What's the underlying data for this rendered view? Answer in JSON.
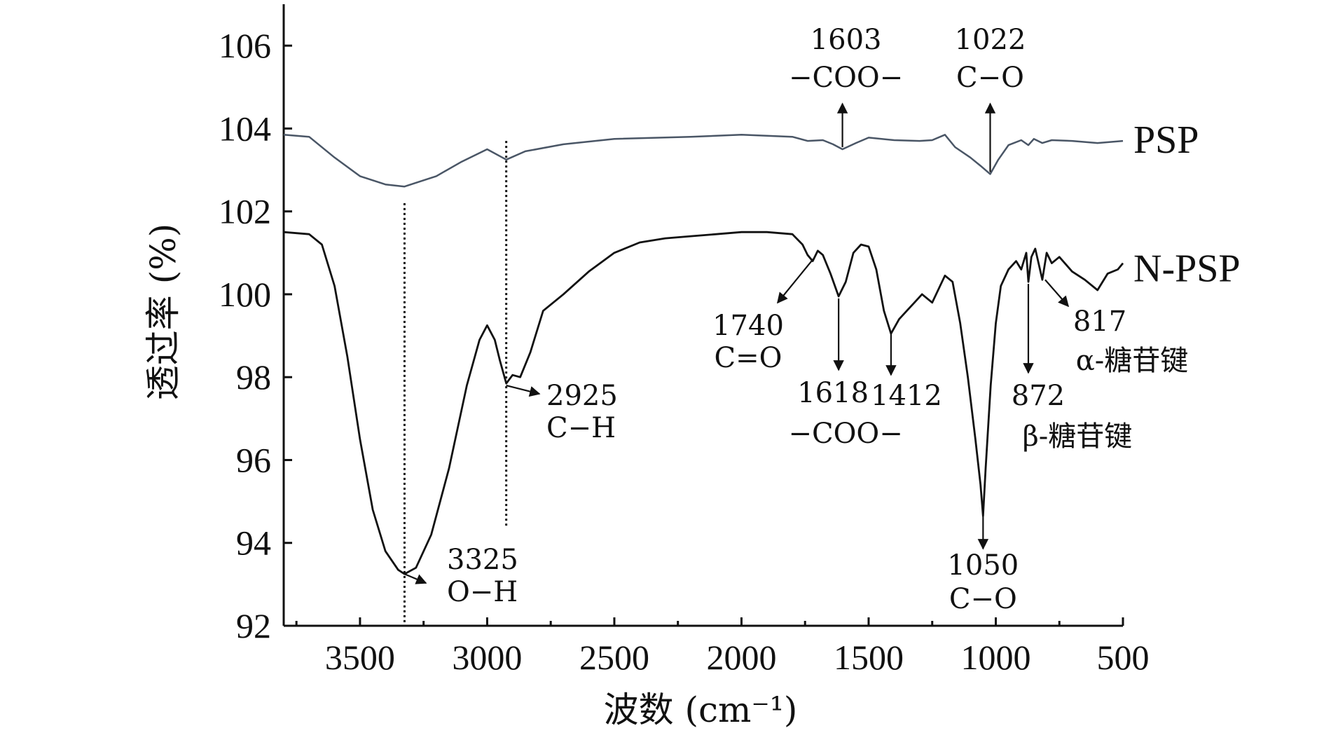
{
  "chart_data": {
    "type": "line",
    "xlabel": "波数 (cm⁻¹)",
    "ylabel": "透过率 (%)",
    "xlim": [
      3800,
      500
    ],
    "ylim": [
      92,
      107
    ],
    "x_ticks": [
      3500,
      3000,
      2500,
      2000,
      1500,
      1000,
      500
    ],
    "y_ticks": [
      92,
      94,
      96,
      98,
      100,
      102,
      104,
      106
    ],
    "grid": false,
    "series": [
      {
        "name": "PSP",
        "color": "#4a5666",
        "points": [
          [
            3800,
            103.85
          ],
          [
            3700,
            103.8
          ],
          [
            3600,
            103.3
          ],
          [
            3500,
            102.85
          ],
          [
            3400,
            102.65
          ],
          [
            3325,
            102.6
          ],
          [
            3200,
            102.85
          ],
          [
            3100,
            103.2
          ],
          [
            3000,
            103.5
          ],
          [
            2925,
            103.25
          ],
          [
            2850,
            103.45
          ],
          [
            2700,
            103.62
          ],
          [
            2500,
            103.75
          ],
          [
            2200,
            103.8
          ],
          [
            2000,
            103.85
          ],
          [
            1800,
            103.8
          ],
          [
            1740,
            103.7
          ],
          [
            1680,
            103.72
          ],
          [
            1640,
            103.62
          ],
          [
            1603,
            103.5
          ],
          [
            1550,
            103.65
          ],
          [
            1500,
            103.78
          ],
          [
            1400,
            103.72
          ],
          [
            1300,
            103.7
          ],
          [
            1250,
            103.72
          ],
          [
            1200,
            103.85
          ],
          [
            1160,
            103.55
          ],
          [
            1100,
            103.3
          ],
          [
            1060,
            103.1
          ],
          [
            1022,
            102.9
          ],
          [
            990,
            103.25
          ],
          [
            950,
            103.6
          ],
          [
            900,
            103.72
          ],
          [
            872,
            103.6
          ],
          [
            850,
            103.75
          ],
          [
            817,
            103.65
          ],
          [
            780,
            103.72
          ],
          [
            700,
            103.7
          ],
          [
            600,
            103.65
          ],
          [
            500,
            103.7
          ]
        ]
      },
      {
        "name": "N-PSP",
        "color": "#111111",
        "points": [
          [
            3800,
            101.5
          ],
          [
            3700,
            101.45
          ],
          [
            3650,
            101.2
          ],
          [
            3600,
            100.2
          ],
          [
            3550,
            98.5
          ],
          [
            3500,
            96.5
          ],
          [
            3450,
            94.8
          ],
          [
            3400,
            93.8
          ],
          [
            3350,
            93.35
          ],
          [
            3325,
            93.25
          ],
          [
            3280,
            93.4
          ],
          [
            3220,
            94.2
          ],
          [
            3150,
            95.8
          ],
          [
            3080,
            97.8
          ],
          [
            3030,
            98.9
          ],
          [
            3000,
            99.25
          ],
          [
            2970,
            98.9
          ],
          [
            2950,
            98.4
          ],
          [
            2925,
            97.85
          ],
          [
            2900,
            98.05
          ],
          [
            2870,
            98.0
          ],
          [
            2830,
            98.6
          ],
          [
            2780,
            99.6
          ],
          [
            2700,
            100.0
          ],
          [
            2600,
            100.55
          ],
          [
            2500,
            101.0
          ],
          [
            2400,
            101.25
          ],
          [
            2300,
            101.35
          ],
          [
            2200,
            101.4
          ],
          [
            2100,
            101.45
          ],
          [
            2000,
            101.5
          ],
          [
            1900,
            101.5
          ],
          [
            1800,
            101.45
          ],
          [
            1760,
            101.2
          ],
          [
            1740,
            100.95
          ],
          [
            1720,
            100.8
          ],
          [
            1700,
            101.05
          ],
          [
            1680,
            100.95
          ],
          [
            1650,
            100.5
          ],
          [
            1618,
            99.95
          ],
          [
            1590,
            100.3
          ],
          [
            1560,
            101.0
          ],
          [
            1530,
            101.2
          ],
          [
            1500,
            101.15
          ],
          [
            1470,
            100.6
          ],
          [
            1440,
            99.6
          ],
          [
            1412,
            99.05
          ],
          [
            1380,
            99.4
          ],
          [
            1350,
            99.6
          ],
          [
            1320,
            99.8
          ],
          [
            1290,
            100.0
          ],
          [
            1250,
            99.8
          ],
          [
            1200,
            100.45
          ],
          [
            1170,
            100.3
          ],
          [
            1140,
            99.3
          ],
          [
            1110,
            98.0
          ],
          [
            1080,
            96.5
          ],
          [
            1060,
            95.4
          ],
          [
            1050,
            94.65
          ],
          [
            1040,
            95.8
          ],
          [
            1020,
            97.8
          ],
          [
            1000,
            99.3
          ],
          [
            980,
            100.2
          ],
          [
            950,
            100.6
          ],
          [
            920,
            100.8
          ],
          [
            900,
            100.6
          ],
          [
            880,
            101.0
          ],
          [
            872,
            100.3
          ],
          [
            860,
            100.9
          ],
          [
            845,
            101.1
          ],
          [
            830,
            100.7
          ],
          [
            817,
            100.35
          ],
          [
            800,
            101.0
          ],
          [
            780,
            100.75
          ],
          [
            750,
            100.9
          ],
          [
            700,
            100.55
          ],
          [
            650,
            100.35
          ],
          [
            600,
            100.1
          ],
          [
            560,
            100.5
          ],
          [
            520,
            100.6
          ],
          [
            500,
            100.75
          ]
        ]
      }
    ],
    "reference_lines_x": [
      3325,
      2925
    ],
    "annotations": [
      {
        "id": "psp_1603",
        "num": "1603",
        "label": "−COO−"
      },
      {
        "id": "psp_1022",
        "num": "1022",
        "label": "C−O"
      },
      {
        "id": "np_3325",
        "num": "3325",
        "label": "O−H"
      },
      {
        "id": "np_2925",
        "num": "2925",
        "label": "C−H"
      },
      {
        "id": "np_1740",
        "num": "1740",
        "label": "C=O"
      },
      {
        "id": "np_1618",
        "num": "1618",
        "label": "−COO−"
      },
      {
        "id": "np_1412",
        "num": "1412",
        "label": ""
      },
      {
        "id": "np_1050",
        "num": "1050",
        "label": "C−O"
      },
      {
        "id": "np_872",
        "num": "872",
        "label": "β-糖苷键"
      },
      {
        "id": "np_817",
        "num": "817",
        "label": "α-糖苷键"
      }
    ]
  }
}
